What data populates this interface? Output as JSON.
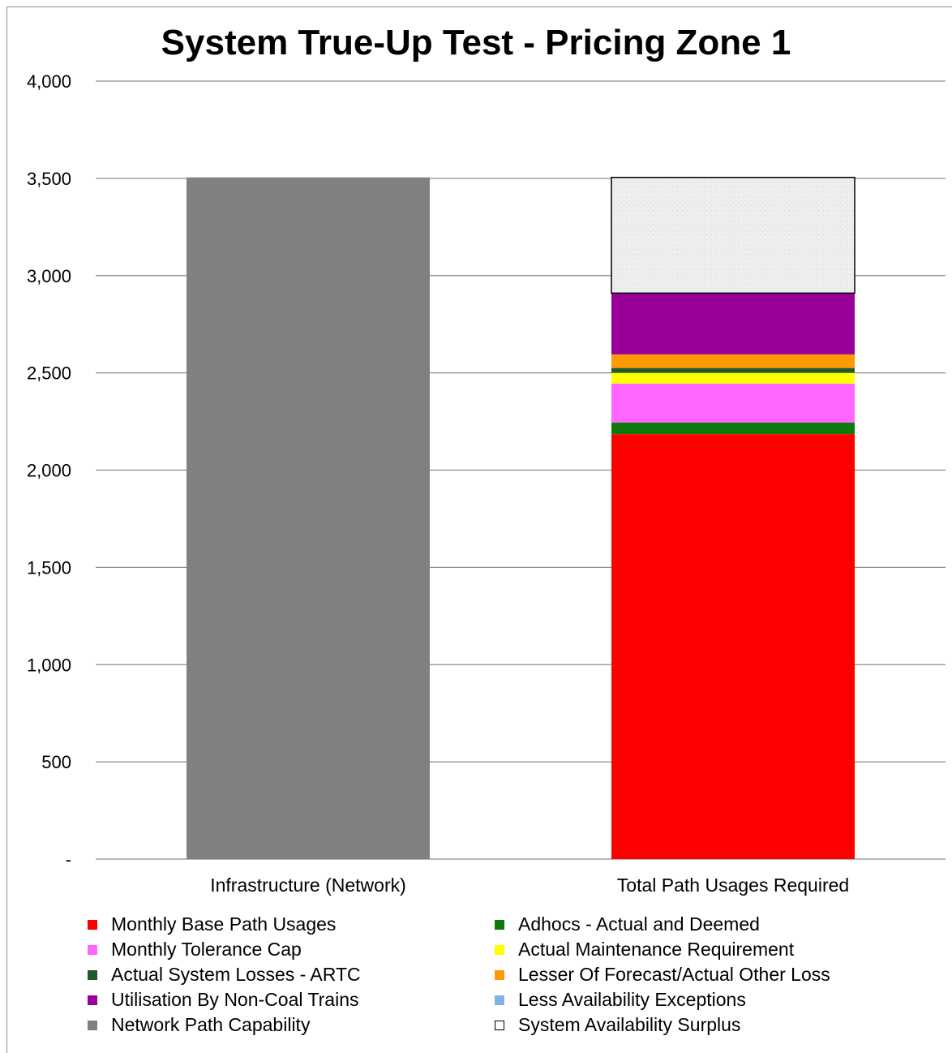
{
  "chart_data": {
    "type": "bar",
    "stacked": true,
    "title": "System True-Up Test - Pricing Zone 1",
    "xlabel": "",
    "ylabel": "",
    "ylim": [
      0,
      4000
    ],
    "yticks": [
      0,
      500,
      1000,
      1500,
      2000,
      2500,
      3000,
      3500,
      4000
    ],
    "ytick_labels": [
      "-",
      "500",
      "1,000",
      "1,500",
      "2,000",
      "2,500",
      "3,000",
      "3,500",
      "4,000"
    ],
    "categories": [
      "Infrastructure (Network)",
      "Total Path Usages Required"
    ],
    "grid": true,
    "legend_position": "bottom",
    "series": [
      {
        "name": "Monthly Base Path Usages",
        "color": "#ff0000",
        "values": [
          0,
          2185
        ]
      },
      {
        "name": "Adhocs - Actual and Deemed",
        "color": "#0e7a0e",
        "values": [
          0,
          60
        ]
      },
      {
        "name": "Monthly Tolerance Cap",
        "color": "#ff66ff",
        "values": [
          0,
          200
        ]
      },
      {
        "name": "Actual Maintenance Requirement",
        "color": "#ffff00",
        "values": [
          0,
          55
        ]
      },
      {
        "name": "Actual System Losses - ARTC",
        "color": "#1e5a2a",
        "values": [
          0,
          25
        ]
      },
      {
        "name": "Lesser Of Forecast/Actual Other Loss",
        "color": "#ff9900",
        "values": [
          0,
          70
        ]
      },
      {
        "name": "Utilisation By Non-Coal Trains",
        "color": "#990099",
        "values": [
          0,
          315
        ]
      },
      {
        "name": "Less Availability Exceptions",
        "color": "#7fb2e6",
        "values": [
          0,
          0
        ]
      },
      {
        "name": "Network Path Capability",
        "color": "#808080",
        "values": [
          3505,
          0
        ]
      },
      {
        "name": "System Availability Surplus",
        "color": "#ededed",
        "values": [
          0,
          595
        ]
      }
    ]
  }
}
